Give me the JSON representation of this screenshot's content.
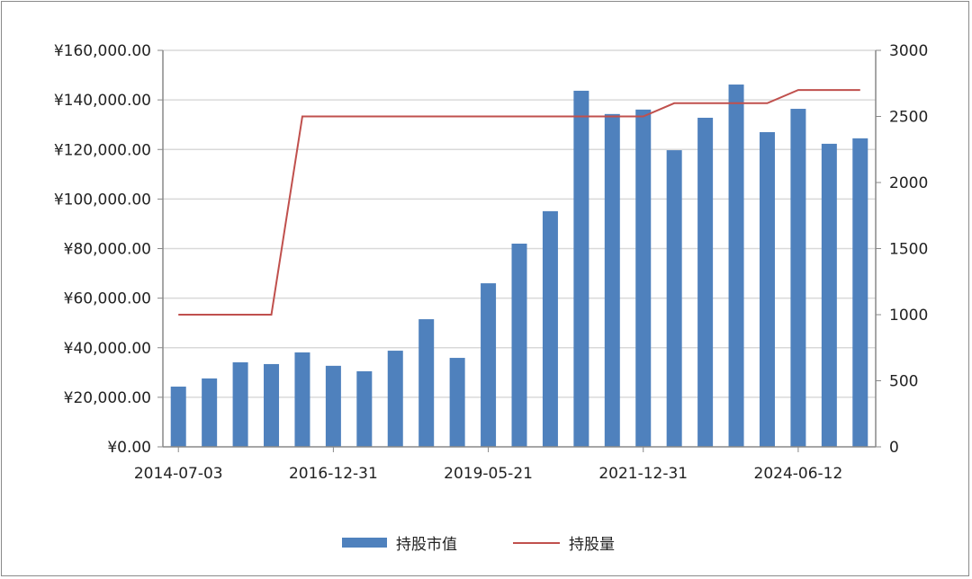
{
  "chart_data": {
    "type": "bar+line",
    "x_tick_labels": [
      "2014-07-03",
      "2016-12-31",
      "2019-05-21",
      "2021-12-31",
      "2024-06-12"
    ],
    "x_tick_label_positions": [
      1,
      6,
      11,
      16,
      21
    ],
    "series": [
      {
        "name": "持股市值",
        "type": "bar",
        "axis": "left",
        "color": "#4f81bd",
        "values": [
          24300,
          27600,
          34100,
          33400,
          38100,
          32700,
          30500,
          38800,
          51500,
          35900,
          66000,
          82000,
          95100,
          143700,
          134300,
          136100,
          119700,
          132800,
          146200,
          127000,
          136400,
          122300,
          124500
        ]
      },
      {
        "name": "持股量",
        "type": "line",
        "axis": "right",
        "color": "#c0504d",
        "values": [
          1000,
          1000,
          1000,
          1000,
          2500,
          2500,
          2500,
          2500,
          2500,
          2500,
          2500,
          2500,
          2500,
          2500,
          2500,
          2500,
          2600,
          2600,
          2600,
          2600,
          2700,
          2700,
          2700
        ]
      }
    ],
    "y_left": {
      "ylim": [
        0,
        160000
      ],
      "ticks": [
        "¥0.00",
        "¥20,000.00",
        "¥40,000.00",
        "¥60,000.00",
        "¥80,000.00",
        "¥100,000.00",
        "¥120,000.00",
        "¥140,000.00",
        "¥160,000.00"
      ]
    },
    "y_right": {
      "ylim": [
        0,
        3000
      ],
      "ticks": [
        "0",
        "500",
        "1000",
        "1500",
        "2000",
        "2500",
        "3000"
      ]
    },
    "grid": true,
    "legend": "bottom"
  }
}
